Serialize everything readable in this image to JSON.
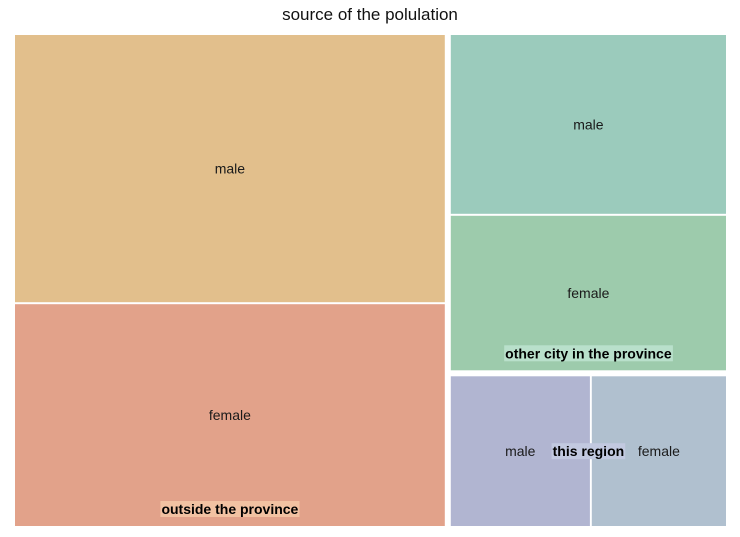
{
  "chart_data": {
    "type": "treemap",
    "title": "source of the polulation",
    "groups": [
      {
        "name": "outside the province",
        "label_color": "#f2c2a2",
        "children": [
          {
            "name": "male",
            "value": 154,
            "color": "#e2bf8c"
          },
          {
            "name": "female",
            "value": 128,
            "color": "#e2a28a"
          }
        ]
      },
      {
        "name": "other city in the province",
        "label_color": "#b9e0cb",
        "children": [
          {
            "name": "male",
            "value": 67,
            "color": "#9bcbbc"
          },
          {
            "name": "female",
            "value": 58,
            "color": "#9dcbac"
          }
        ]
      },
      {
        "name": "this region",
        "label_color": "#c2c9e0",
        "children": [
          {
            "name": "male",
            "value": 29,
            "color": "#b1b5d1"
          },
          {
            "name": "female",
            "value": 28,
            "color": "#b0c0cf"
          }
        ]
      }
    ]
  }
}
